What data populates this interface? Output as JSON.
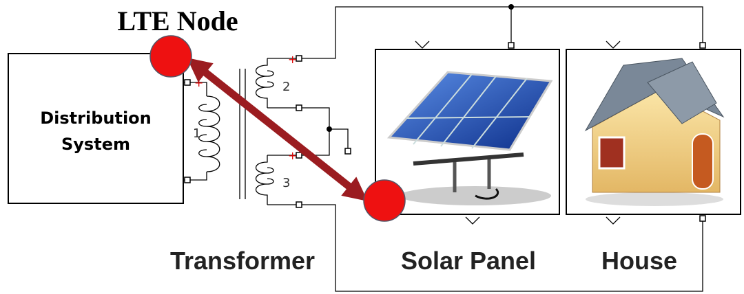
{
  "lte_node": {
    "label": "LTE Node"
  },
  "distribution_system": {
    "lines": [
      "Distribution",
      "System"
    ]
  },
  "transformer": {
    "label": "Transformer",
    "windings": [
      "1",
      "2",
      "3"
    ]
  },
  "solar_panel": {
    "label": "Solar Panel"
  },
  "house": {
    "label": "House"
  }
}
